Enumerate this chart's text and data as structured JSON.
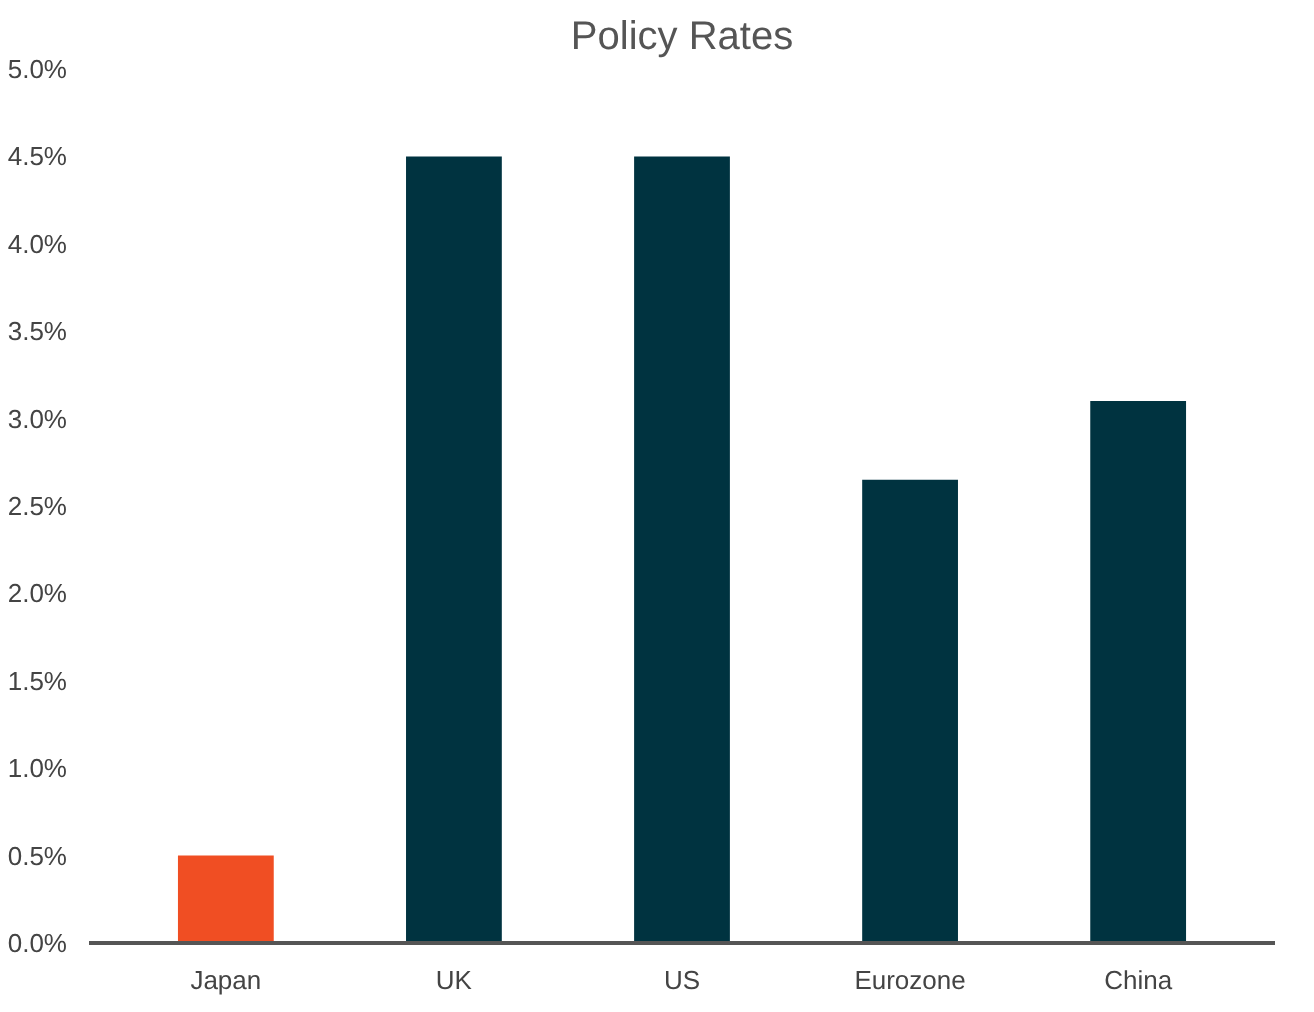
{
  "chart_data": {
    "type": "bar",
    "title": "Policy Rates",
    "categories": [
      "Japan",
      "UK",
      "US",
      "Eurozone",
      "China"
    ],
    "values": [
      0.5,
      4.5,
      4.5,
      2.65,
      3.1
    ],
    "colors": [
      "#f04e23",
      "#003340",
      "#003340",
      "#003340",
      "#003340"
    ],
    "ylim": [
      0,
      5.0
    ],
    "yticks": [
      {
        "value": 0,
        "label": "0.0%"
      },
      {
        "value": 0.5,
        "label": "0.5%"
      },
      {
        "value": 1.0,
        "label": "1.0%"
      },
      {
        "value": 1.5,
        "label": "1.5%"
      },
      {
        "value": 2.0,
        "label": "2.0%"
      },
      {
        "value": 2.5,
        "label": "2.5%"
      },
      {
        "value": 3.0,
        "label": "3.0%"
      },
      {
        "value": 3.5,
        "label": "3.5%"
      },
      {
        "value": 4.0,
        "label": "4.0%"
      },
      {
        "value": 4.5,
        "label": "4.5%"
      },
      {
        "value": 5.0,
        "label": "5.0%"
      }
    ],
    "grid": false
  }
}
